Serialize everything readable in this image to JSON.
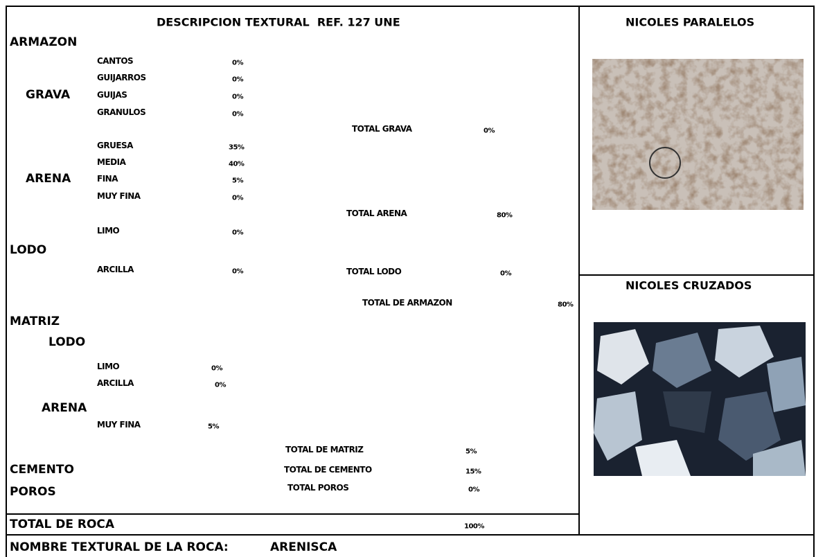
{
  "header": {
    "title": "DESCRIPCION TEXTURAL  REF. 127 UNE",
    "panel_1": "NICOLES PARALELOS",
    "panel_2": "NICOLES CRUZADOS"
  },
  "armazon": {
    "title": "ARMAZON",
    "grava": {
      "title": "GRAVA",
      "items": [
        {
          "label": "CANTOS",
          "value": "0%"
        },
        {
          "label": "GUIJARROS",
          "value": "0%"
        },
        {
          "label": "GUIJAS",
          "value": "0%"
        },
        {
          "label": "GRANULOS",
          "value": "0%"
        }
      ],
      "total": {
        "label": "TOTAL GRAVA",
        "value": "0%"
      }
    },
    "arena": {
      "title": "ARENA",
      "items": [
        {
          "label": "GRUESA",
          "value": "35%"
        },
        {
          "label": "MEDIA",
          "value": "40%"
        },
        {
          "label": "FINA",
          "value": "5%"
        },
        {
          "label": "MUY FINA",
          "value": "0%"
        }
      ],
      "total": {
        "label": "TOTAL ARENA",
        "value": "80%"
      }
    },
    "lodo": {
      "title": "LODO",
      "items": [
        {
          "label": "LIMO",
          "value": "0%"
        },
        {
          "label": "ARCILLA",
          "value": "0%"
        }
      ],
      "total": {
        "label": "TOTAL LODO",
        "value": "0%"
      }
    },
    "total": {
      "label": "TOTAL DE ARMAZON",
      "value": "80%"
    }
  },
  "matriz": {
    "title": "MATRIZ",
    "lodo": {
      "title": "LODO",
      "items": [
        {
          "label": "LIMO",
          "value": "0%"
        },
        {
          "label": "ARCILLA",
          "value": "0%"
        }
      ]
    },
    "arena": {
      "title": "ARENA",
      "items": [
        {
          "label": "MUY FINA",
          "value": "5%"
        }
      ]
    },
    "total": {
      "label": "TOTAL DE MATRIZ",
      "value": "5%"
    }
  },
  "cemento": {
    "title": "CEMENTO",
    "total": {
      "label": "TOTAL DE CEMENTO",
      "value": "15%"
    }
  },
  "poros": {
    "title": "POROS",
    "total": {
      "label": "TOTAL POROS",
      "value": "0%"
    }
  },
  "roca": {
    "label": "TOTAL DE ROCA",
    "value": "100%"
  },
  "nombre": {
    "label": "NOMBRE TEXTURAL DE LA ROCA:",
    "value": "ARENISCA"
  }
}
